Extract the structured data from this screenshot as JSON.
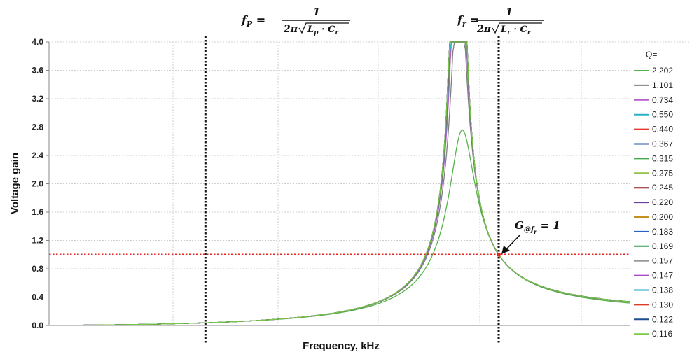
{
  "chart_data": {
    "type": "line",
    "title": "",
    "xlabel": "Frequency, kHz",
    "ylabel": "Voltage gain",
    "ylim": [
      0,
      4.0
    ],
    "xlim": [
      0,
      1
    ],
    "x_ticks_labeled": false,
    "y_ticks": [
      "0.0",
      "0.4",
      "0.8",
      "1.2",
      "1.6",
      "2.0",
      "2.4",
      "2.8",
      "3.2",
      "3.6",
      "4.0"
    ],
    "grid": true,
    "legend_title": "Q=",
    "legend_position": "right",
    "fp_ratio": 0.4,
    "annotations": {
      "fp_formula": {
        "lhs": "f",
        "sub": "P",
        "num": "1",
        "den_prefix": "2π",
        "den_root": "L",
        "den_root_sub": "p",
        "den_dot": " · ",
        "den_root2": "C",
        "den_root2_sub": "r"
      },
      "fr_formula": {
        "lhs": "f",
        "sub": "r",
        "num": "1",
        "den_prefix": "2π",
        "den_root": "L",
        "den_root_sub": "r",
        "den_dot": " · ",
        "den_root2": "C",
        "den_root2_sub": "r"
      },
      "gain_label": {
        "text": "G",
        "sub": "@f",
        "subsub": "r",
        "rhs": " = 1"
      }
    },
    "reference_lines": {
      "horizontal_y": 1.0,
      "color": "#e82020"
    },
    "series": [
      {
        "name": "2.202",
        "q": 2.202,
        "color": "#52b548"
      },
      {
        "name": "1.101",
        "q": 1.101,
        "color": "#7f7f7f"
      },
      {
        "name": "0.734",
        "q": 0.734,
        "color": "#b45cc8"
      },
      {
        "name": "0.550",
        "q": 0.55,
        "color": "#27b3c4"
      },
      {
        "name": "0.440",
        "q": 0.44,
        "color": "#e8372c"
      },
      {
        "name": "0.367",
        "q": 0.367,
        "color": "#2f4fa8"
      },
      {
        "name": "0.315",
        "q": 0.315,
        "color": "#3fae49"
      },
      {
        "name": "0.275",
        "q": 0.275,
        "color": "#94c147"
      },
      {
        "name": "0.245",
        "q": 0.245,
        "color": "#8b1a1a"
      },
      {
        "name": "0.220",
        "q": 0.22,
        "color": "#6a3fa0"
      },
      {
        "name": "0.200",
        "q": 0.2,
        "color": "#c8901e"
      },
      {
        "name": "0.183",
        "q": 0.183,
        "color": "#2a62c9"
      },
      {
        "name": "0.169",
        "q": 0.169,
        "color": "#2e9e4a"
      },
      {
        "name": "0.157",
        "q": 0.157,
        "color": "#9a9a9a"
      },
      {
        "name": "0.147",
        "q": 0.147,
        "color": "#a74cc2"
      },
      {
        "name": "0.138",
        "q": 0.138,
        "color": "#1ca3c9"
      },
      {
        "name": "0.130",
        "q": 0.13,
        "color": "#e03a2a"
      },
      {
        "name": "0.122",
        "q": 0.122,
        "color": "#1f4d8f"
      },
      {
        "name": "0.116",
        "q": 0.116,
        "color": "#7ac943"
      }
    ]
  }
}
